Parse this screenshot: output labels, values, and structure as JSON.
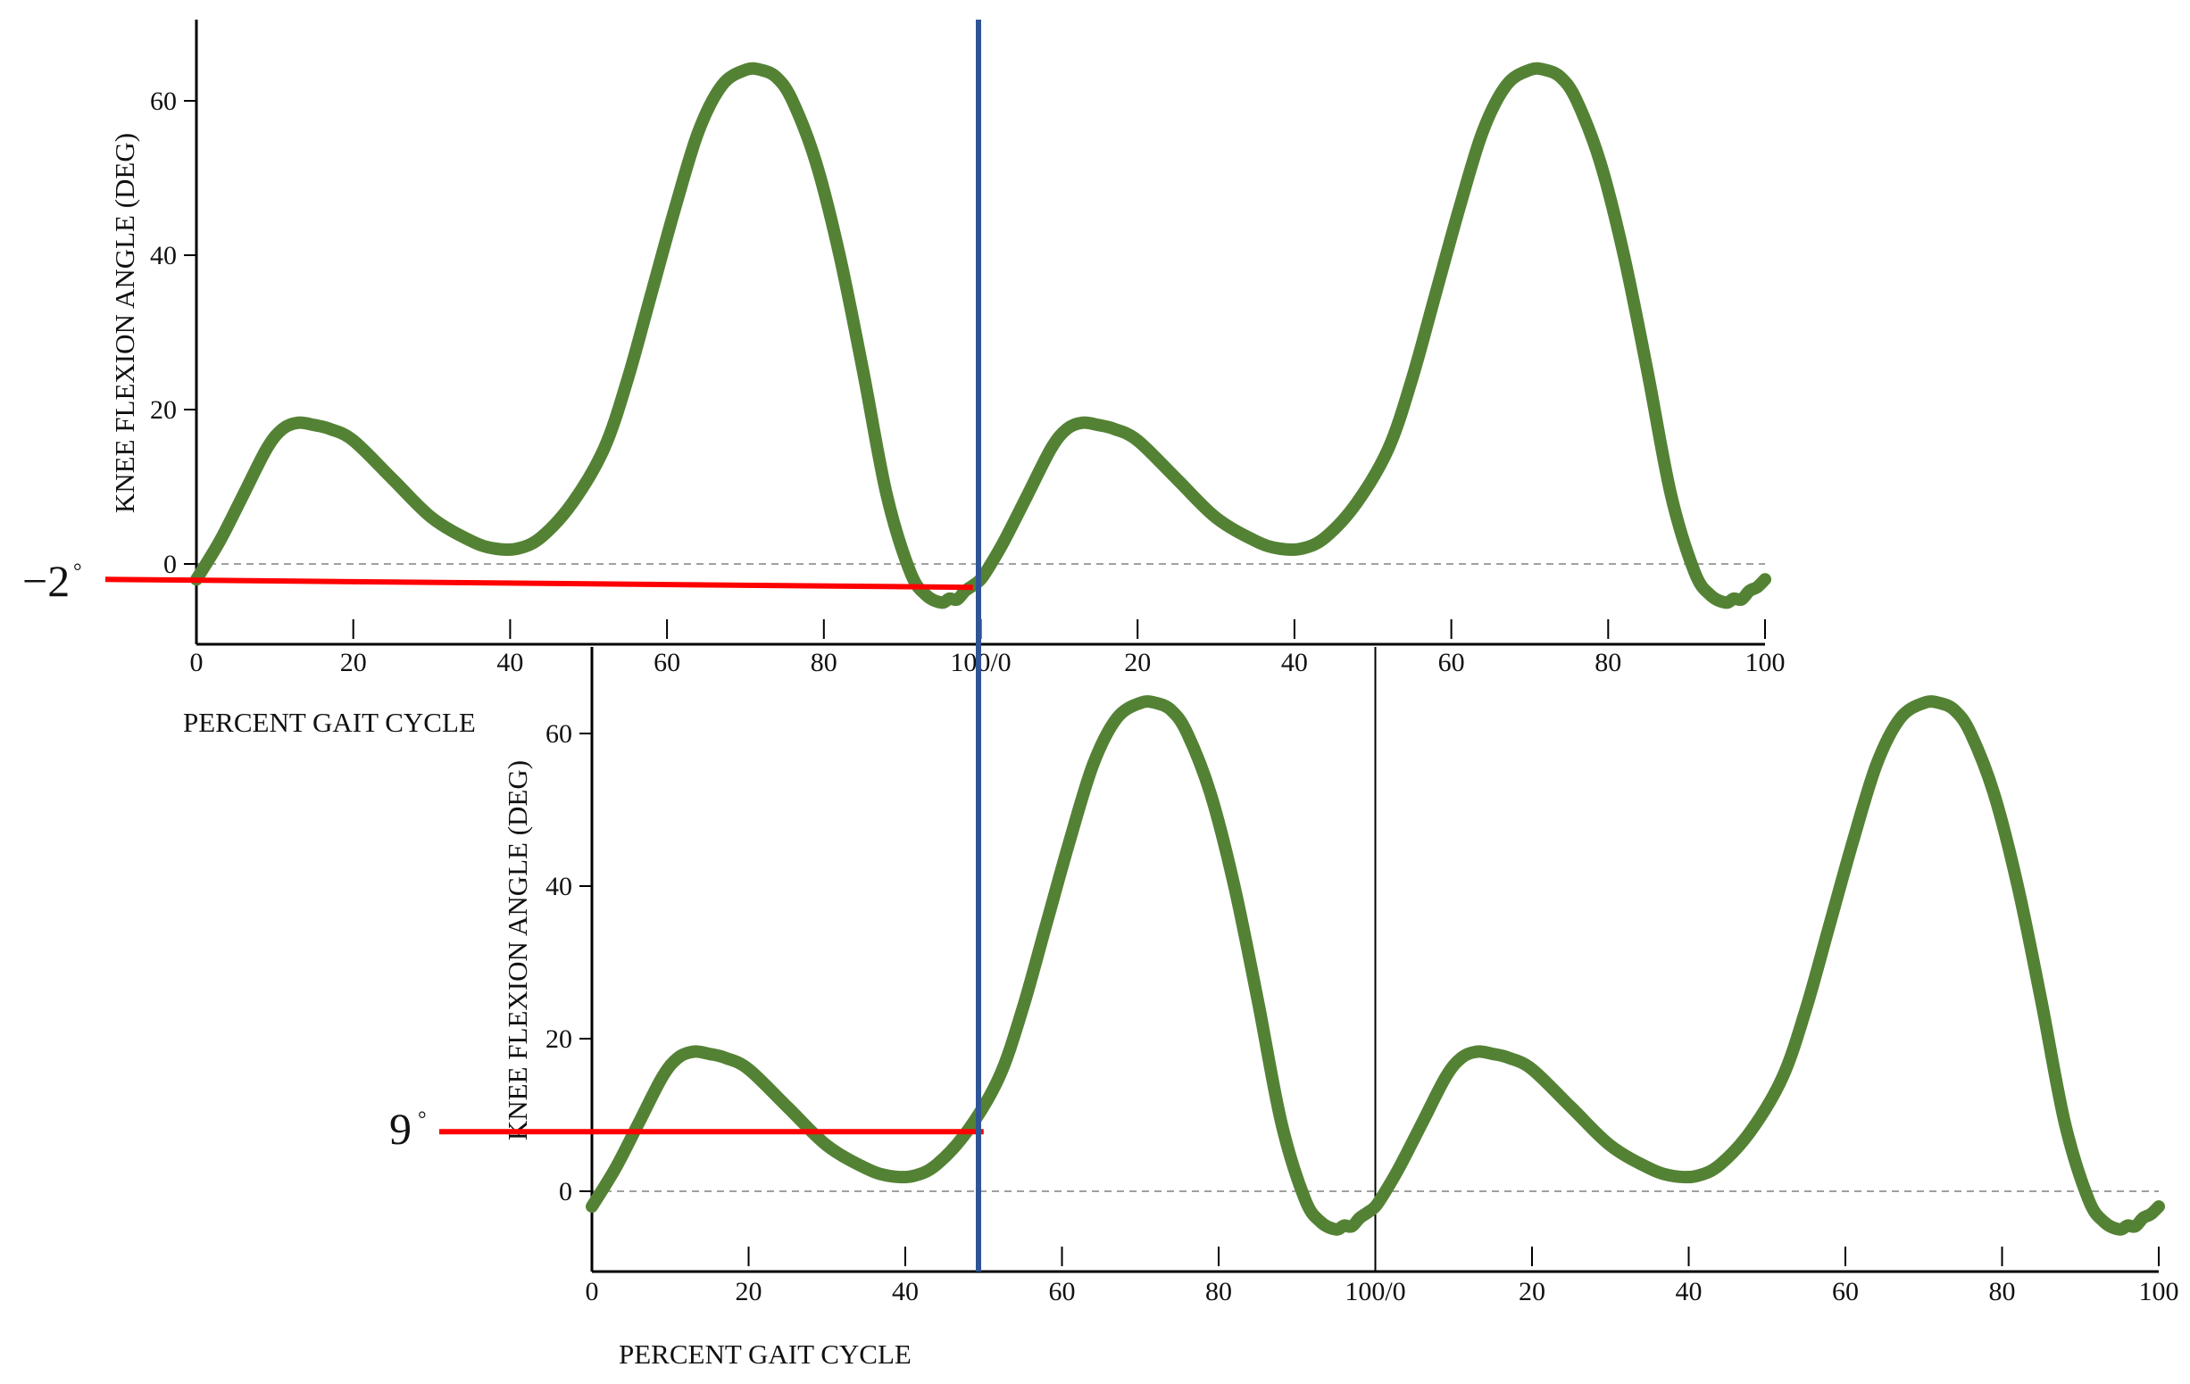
{
  "chart_data": [
    {
      "id": "top",
      "type": "line",
      "title": "",
      "xlabel": "PERCENT GAIT CYCLE",
      "ylabel": "KNEE FLEXION ANGLE (DEG)",
      "x_ticks": [
        "0",
        "20",
        "40",
        "60",
        "80",
        "100/0",
        "20",
        "40",
        "60",
        "80",
        "100"
      ],
      "y_ticks": [
        "0",
        "20",
        "40",
        "60"
      ],
      "xlim": [
        0,
        200
      ],
      "ylim": [
        -10,
        70
      ],
      "grid": false,
      "zero_line": "dashed",
      "line_color": "#548235",
      "cycle_marker_x": 100,
      "series": [
        {
          "values_x": [
            0,
            3,
            6,
            9,
            11,
            13,
            15,
            17,
            20,
            25,
            30,
            35,
            38,
            41,
            44,
            48,
            52,
            55,
            58,
            61,
            64,
            67,
            70,
            72,
            74,
            76,
            79,
            82,
            85,
            88,
            91,
            93,
            95,
            96,
            97,
            98,
            99,
            100,
            101,
            103,
            106,
            109,
            111,
            113,
            115,
            117,
            120,
            125,
            130,
            135,
            138,
            141,
            144,
            148,
            152,
            155,
            158,
            161,
            164,
            167,
            170,
            172,
            174,
            176,
            179,
            182,
            185,
            188,
            191,
            193,
            195,
            196,
            197,
            198,
            199,
            200
          ],
          "values_y": [
            -2,
            3,
            9,
            15,
            17.5,
            18.3,
            18,
            17.5,
            16,
            11,
            6,
            3,
            2,
            2,
            3.5,
            8,
            15,
            24,
            35,
            46,
            56,
            62,
            64,
            64,
            63,
            60,
            52,
            40,
            25,
            9,
            -1,
            -4,
            -5,
            -4.5,
            -4.6,
            -3.5,
            -2.8,
            -2,
            -0.5,
            3,
            9,
            15,
            17.5,
            18.3,
            18,
            17.5,
            16,
            11,
            6,
            3,
            2,
            2,
            3.5,
            8,
            15,
            24,
            35,
            46,
            56,
            62,
            64,
            64,
            63,
            60,
            52,
            40,
            25,
            9,
            -1,
            -4,
            -5,
            -4.5,
            -4.6,
            -3.5,
            -3,
            -2
          ]
        }
      ],
      "annotation": {
        "label": "−2",
        "degree": "°",
        "value": -2
      }
    },
    {
      "id": "bottom",
      "type": "line",
      "title": "",
      "xlabel": "PERCENT GAIT CYCLE",
      "ylabel": "KNEE FLEXION ANGLE (DEG)",
      "x_ticks": [
        "0",
        "20",
        "40",
        "60",
        "80",
        "100/0",
        "20",
        "40",
        "60",
        "80",
        "100"
      ],
      "y_ticks": [
        "0",
        "20",
        "40",
        "60"
      ],
      "xlim": [
        0,
        200
      ],
      "ylim": [
        -10,
        70
      ],
      "grid": false,
      "zero_line": "dashed",
      "line_color": "#548235",
      "cycle_marker_x": 100,
      "series": [
        {
          "values_x": [
            0,
            3,
            6,
            9,
            11,
            13,
            15,
            17,
            20,
            25,
            30,
            35,
            38,
            41,
            44,
            48,
            52,
            55,
            58,
            61,
            64,
            67,
            70,
            72,
            74,
            76,
            79,
            82,
            85,
            88,
            91,
            93,
            95,
            96,
            97,
            98,
            99,
            100,
            101,
            103,
            106,
            109,
            111,
            113,
            115,
            117,
            120,
            125,
            130,
            135,
            138,
            141,
            144,
            148,
            152,
            155,
            158,
            161,
            164,
            167,
            170,
            172,
            174,
            176,
            179,
            182,
            185,
            188,
            191,
            193,
            195,
            196,
            197,
            198,
            199,
            200
          ],
          "values_y": [
            -2,
            3,
            9,
            15,
            17.5,
            18.3,
            18,
            17.5,
            16,
            11,
            6,
            3,
            2,
            2,
            3.5,
            8,
            15,
            24,
            35,
            46,
            56,
            62,
            64,
            64,
            63,
            60,
            52,
            40,
            25,
            9,
            -1,
            -4,
            -5,
            -4.5,
            -4.6,
            -3.5,
            -2.8,
            -2,
            -0.5,
            3,
            9,
            15,
            17.5,
            18.3,
            18,
            17.5,
            16,
            11,
            6,
            3,
            2,
            2,
            3.5,
            8,
            15,
            24,
            35,
            46,
            56,
            62,
            64,
            64,
            63,
            60,
            52,
            40,
            25,
            9,
            -1,
            -4,
            -5,
            -4.5,
            -4.6,
            -3.5,
            -3,
            -2
          ]
        }
      ],
      "annotation": {
        "label": "9",
        "degree": "°",
        "value": 9
      }
    }
  ],
  "colors": {
    "curve": "#548235",
    "highlight_line": "#ff0000",
    "alignment_line": "#2f5597",
    "axis": "#000000",
    "zero_line": "#808080"
  }
}
